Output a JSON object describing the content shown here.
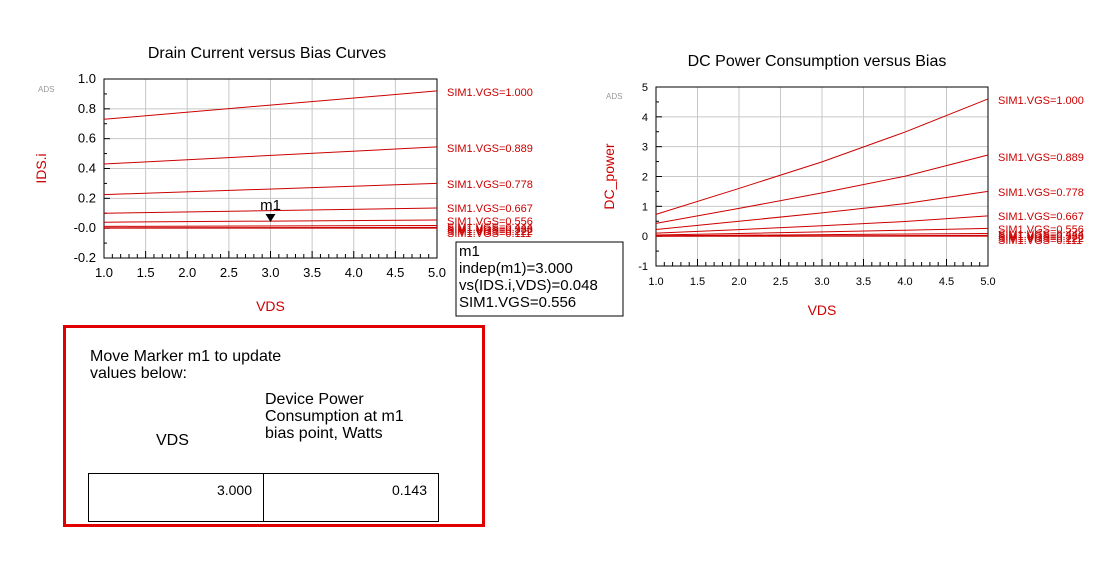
{
  "colors": {
    "curve": "#cc0000",
    "grid": "#c8c8c8",
    "axis_title": "#cc0000",
    "panel_border": "#e00000"
  },
  "chart_data": [
    {
      "type": "line",
      "title": "Drain Current versus Bias Curves",
      "xlabel": "VDS",
      "ylabel": "IDS.i",
      "corner_label": "ADS",
      "xlim": [
        1.0,
        5.0
      ],
      "ylim": [
        -0.2,
        1.0
      ],
      "x_ticks": [
        "1.0",
        "1.5",
        "2.0",
        "2.5",
        "3.0",
        "3.5",
        "4.0",
        "4.5",
        "5.0"
      ],
      "y_ticks": [
        "-0.2",
        "-0.0",
        "0.2",
        "0.4",
        "0.6",
        "0.8",
        "1.0"
      ],
      "x_tick_values": [
        1.0,
        1.5,
        2.0,
        2.5,
        3.0,
        3.5,
        4.0,
        4.5,
        5.0
      ],
      "y_tick_values": [
        -0.2,
        0.0,
        0.2,
        0.4,
        0.6,
        0.8,
        1.0
      ],
      "grid": true,
      "series": [
        {
          "name": "SIM1.VGS=1.000",
          "x": [
            1.0,
            5.0
          ],
          "values": [
            0.73,
            0.92
          ]
        },
        {
          "name": "SIM1.VGS=0.889",
          "x": [
            1.0,
            5.0
          ],
          "values": [
            0.43,
            0.545
          ]
        },
        {
          "name": "SIM1.VGS=0.778",
          "x": [
            1.0,
            5.0
          ],
          "values": [
            0.225,
            0.3
          ]
        },
        {
          "name": "SIM1.VGS=0.667",
          "x": [
            1.0,
            5.0
          ],
          "values": [
            0.1,
            0.135
          ]
        },
        {
          "name": "SIM1.VGS=0.556",
          "x": [
            1.0,
            5.0
          ],
          "values": [
            0.04,
            0.055
          ]
        },
        {
          "name": "SIM1.VGS=0.444",
          "x": [
            1.0,
            5.0
          ],
          "values": [
            0.012,
            0.018
          ]
        },
        {
          "name": "SIM1.VGS=0.333",
          "x": [
            1.0,
            5.0
          ],
          "values": [
            0.003,
            0.005
          ]
        },
        {
          "name": "SIM1.VGS=0.222",
          "x": [
            1.0,
            5.0
          ],
          "values": [
            0.001,
            0.002
          ]
        },
        {
          "name": "SIM1.VGS=0.111",
          "x": [
            1.0,
            5.0
          ],
          "values": [
            0.0,
            0.0
          ]
        }
      ],
      "marker": {
        "name": "m1",
        "x": 3.0,
        "y": 0.048,
        "readout": [
          "m1",
          "indep(m1)=3.000",
          "vs(IDS.i,VDS)=0.048",
          "SIM1.VGS=0.556"
        ]
      }
    },
    {
      "type": "line",
      "title": "DC Power Consumption versus Bias",
      "xlabel": "VDS",
      "ylabel": "DC_power",
      "corner_label": "ADS",
      "xlim": [
        1.0,
        5.0
      ],
      "ylim": [
        -1,
        5
      ],
      "x_ticks": [
        "1.0",
        "1.5",
        "2.0",
        "2.5",
        "3.0",
        "3.5",
        "4.0",
        "4.5",
        "5.0"
      ],
      "y_ticks": [
        "-1",
        "0",
        "1",
        "2",
        "3",
        "4",
        "5"
      ],
      "x_tick_values": [
        1.0,
        1.5,
        2.0,
        2.5,
        3.0,
        3.5,
        4.0,
        4.5,
        5.0
      ],
      "y_tick_values": [
        -1,
        0,
        1,
        2,
        3,
        4,
        5
      ],
      "grid": true,
      "series": [
        {
          "name": "SIM1.VGS=1.000",
          "x": [
            1.0,
            2.0,
            3.0,
            4.0,
            5.0
          ],
          "values": [
            0.73,
            1.6,
            2.49,
            3.49,
            4.6
          ]
        },
        {
          "name": "SIM1.VGS=0.889",
          "x": [
            1.0,
            2.0,
            3.0,
            4.0,
            5.0
          ],
          "values": [
            0.43,
            0.93,
            1.45,
            2.01,
            2.72
          ]
        },
        {
          "name": "SIM1.VGS=0.778",
          "x": [
            1.0,
            2.0,
            3.0,
            4.0,
            5.0
          ],
          "values": [
            0.225,
            0.5,
            0.78,
            1.09,
            1.5
          ]
        },
        {
          "name": "SIM1.VGS=0.667",
          "x": [
            1.0,
            2.0,
            3.0,
            4.0,
            5.0
          ],
          "values": [
            0.1,
            0.22,
            0.35,
            0.49,
            0.68
          ]
        },
        {
          "name": "SIM1.VGS=0.556",
          "x": [
            1.0,
            2.0,
            3.0,
            4.0,
            5.0
          ],
          "values": [
            0.04,
            0.09,
            0.143,
            0.2,
            0.26
          ]
        },
        {
          "name": "SIM1.VGS=0.444",
          "x": [
            1.0,
            5.0
          ],
          "values": [
            0.012,
            0.09
          ]
        },
        {
          "name": "SIM1.VGS=0.333",
          "x": [
            1.0,
            5.0
          ],
          "values": [
            0.003,
            0.025
          ]
        },
        {
          "name": "SIM1.VGS=0.222",
          "x": [
            1.0,
            5.0
          ],
          "values": [
            0.001,
            0.008
          ]
        },
        {
          "name": "SIM1.VGS=0.111",
          "x": [
            1.0,
            5.0
          ],
          "values": [
            0.0,
            0.0
          ]
        }
      ]
    }
  ],
  "panel": {
    "instruction": "Move Marker m1 to update values below:",
    "col_vds": "VDS",
    "col_power": "Device Power Consumption at m1 bias point, Watts",
    "vds_value": "3.000",
    "power_value": "0.143"
  }
}
